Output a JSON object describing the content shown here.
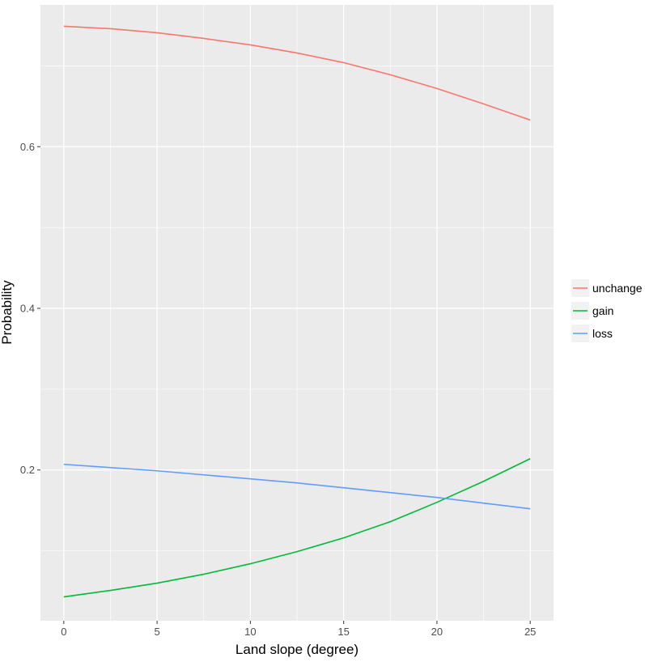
{
  "chart_data": {
    "type": "line",
    "title": "",
    "xlabel": "Land slope (degree)",
    "ylabel": "Probability",
    "xlim": [
      -1.25,
      26.25
    ],
    "ylim": [
      0.0135,
      0.7755
    ],
    "x_ticks": [
      0,
      5,
      10,
      15,
      20,
      25
    ],
    "x_tick_labels": [
      "0",
      "5",
      "10",
      "15",
      "20",
      "25"
    ],
    "y_ticks": [
      0.2,
      0.4,
      0.6
    ],
    "y_tick_labels": [
      "0.2",
      "0.4",
      "0.6"
    ],
    "grid": true,
    "legend_position": "right",
    "x": [
      0,
      2.5,
      5,
      7.5,
      10,
      12.5,
      15,
      17.5,
      20,
      22.5,
      25
    ],
    "series": [
      {
        "name": "unchange",
        "color": "#F8766D",
        "values": [
          0.749,
          0.746,
          0.741,
          0.734,
          0.726,
          0.716,
          0.704,
          0.689,
          0.672,
          0.653,
          0.633
        ]
      },
      {
        "name": "gain",
        "color": "#00BA38",
        "values": [
          0.043,
          0.051,
          0.06,
          0.071,
          0.084,
          0.099,
          0.116,
          0.136,
          0.16,
          0.186,
          0.214
        ]
      },
      {
        "name": "loss",
        "color": "#619CFF",
        "values": [
          0.207,
          0.203,
          0.199,
          0.194,
          0.189,
          0.184,
          0.178,
          0.172,
          0.166,
          0.159,
          0.152
        ]
      }
    ]
  }
}
